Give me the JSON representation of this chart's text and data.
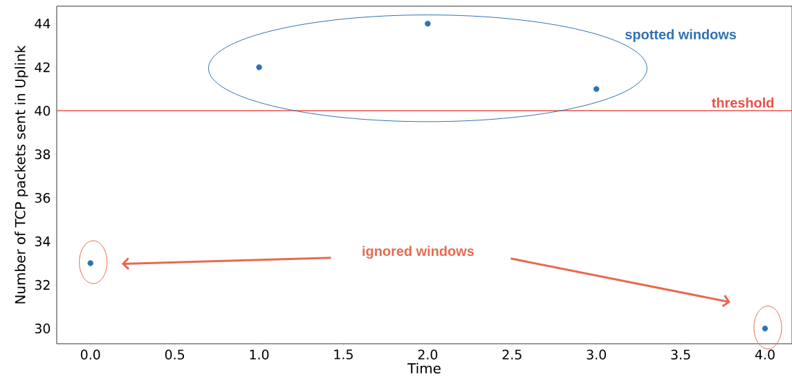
{
  "chart_data": {
    "type": "scatter",
    "xlabel": "Time",
    "ylabel": "Number of TCP packets sent in Uplink",
    "x": [
      0,
      1,
      2,
      3,
      4
    ],
    "values": [
      33,
      42,
      44,
      41,
      30
    ],
    "color": "#2f72b3",
    "grid": false,
    "xlim": [
      -0.2,
      4.16
    ],
    "ylim": [
      29.3,
      44.8
    ],
    "xticks": [
      {
        "value": 0,
        "label": "0.0"
      },
      {
        "value": 0.5,
        "label": "0.5"
      },
      {
        "value": 1,
        "label": "1.0"
      },
      {
        "value": 1.5,
        "label": "1.5"
      },
      {
        "value": 2,
        "label": "2.0"
      },
      {
        "value": 2.5,
        "label": "2.5"
      },
      {
        "value": 3,
        "label": "3.0"
      },
      {
        "value": 3.5,
        "label": "3.5"
      },
      {
        "value": 4,
        "label": "4.0"
      }
    ],
    "yticks": [
      30,
      32,
      34,
      36,
      38,
      40,
      42,
      44
    ],
    "ref_lines": [
      {
        "axis": "y",
        "value": 40,
        "label": "threshold",
        "color": "#e8504a"
      }
    ],
    "annotations": [
      "spotted windows",
      "ignored windows"
    ]
  }
}
